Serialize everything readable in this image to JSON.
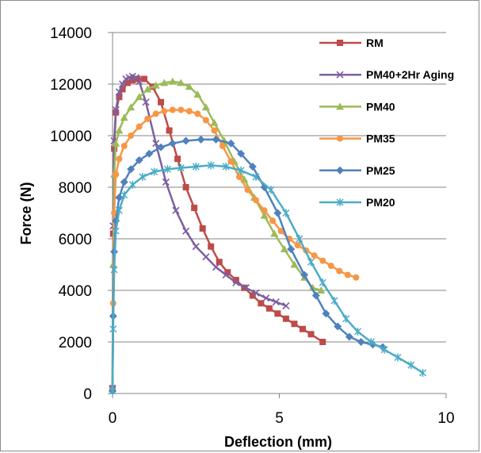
{
  "chart_data": {
    "type": "line",
    "title": "",
    "xlabel": "Deflection (mm)",
    "ylabel": "Force (N)",
    "xlim": [
      0,
      10
    ],
    "ylim": [
      0,
      14000
    ],
    "xticks": [
      0,
      5,
      10
    ],
    "yticks": [
      0,
      2000,
      4000,
      6000,
      8000,
      10000,
      12000,
      14000
    ],
    "grid": "horizontal",
    "legend_position": "right",
    "series": [
      {
        "name": "RM",
        "color": "#be4b48",
        "marker": "square",
        "x": [
          0,
          0.02,
          0.05,
          0.1,
          0.2,
          0.3,
          0.45,
          0.6,
          0.75,
          0.95,
          1.2,
          1.45,
          1.7,
          1.95,
          2.2,
          2.45,
          2.7,
          2.95,
          3.2,
          3.45,
          3.7,
          3.95,
          4.2,
          4.45,
          4.7,
          4.95,
          5.2,
          5.45,
          5.7,
          5.95,
          6.3
        ],
        "y": [
          200,
          6200,
          9500,
          10900,
          11500,
          11800,
          12050,
          12150,
          12200,
          12200,
          11900,
          11300,
          10200,
          9100,
          8000,
          7200,
          6400,
          5700,
          5100,
          4700,
          4400,
          4100,
          3800,
          3500,
          3300,
          3100,
          2900,
          2700,
          2500,
          2300,
          2000
        ]
      },
      {
        "name": "PM40+2Hr Aging",
        "color": "#7d60a0",
        "marker": "x",
        "x": [
          0,
          0.02,
          0.05,
          0.1,
          0.2,
          0.3,
          0.4,
          0.5,
          0.6,
          0.7,
          0.8,
          1.0,
          1.3,
          1.6,
          1.9,
          2.2,
          2.5,
          2.8,
          3.1,
          3.4,
          3.7,
          4.0,
          4.3,
          4.6,
          4.9,
          5.2
        ],
        "y": [
          200,
          6500,
          9800,
          11000,
          11700,
          12000,
          12200,
          12250,
          12300,
          12250,
          12100,
          11300,
          9700,
          8200,
          7100,
          6300,
          5700,
          5300,
          4900,
          4600,
          4300,
          4100,
          3900,
          3700,
          3550,
          3400
        ]
      },
      {
        "name": "PM40",
        "color": "#9bbb59",
        "marker": "triangle",
        "x": [
          0,
          0.02,
          0.05,
          0.1,
          0.2,
          0.35,
          0.55,
          0.8,
          1.05,
          1.3,
          1.55,
          1.8,
          2.05,
          2.3,
          2.55,
          2.8,
          3.05,
          3.35,
          3.65,
          3.95,
          4.25,
          4.55,
          4.85,
          5.15,
          5.45,
          5.75,
          6.0,
          6.25
        ],
        "y": [
          200,
          5000,
          8500,
          9700,
          10200,
          10700,
          11100,
          11500,
          11800,
          11950,
          12050,
          12100,
          12050,
          11900,
          11600,
          11100,
          10500,
          9800,
          9000,
          8300,
          7600,
          6900,
          6200,
          5600,
          5000,
          4500,
          4100,
          4000
        ]
      },
      {
        "name": "PM35",
        "color": "#f79646",
        "marker": "circle",
        "x": [
          0,
          0.02,
          0.05,
          0.1,
          0.2,
          0.35,
          0.55,
          0.8,
          1.05,
          1.3,
          1.55,
          1.8,
          2.05,
          2.3,
          2.55,
          2.8,
          3.05,
          3.3,
          3.55,
          3.8,
          4.05,
          4.3,
          4.55,
          4.8,
          5.05,
          5.3,
          5.55,
          5.8,
          6.05,
          6.3,
          6.55,
          6.8,
          7.05,
          7.3
        ],
        "y": [
          100,
          3500,
          7000,
          8500,
          9100,
          9600,
          10000,
          10350,
          10650,
          10850,
          10950,
          11000,
          11000,
          10950,
          10850,
          10600,
          10200,
          9600,
          9000,
          8400,
          7900,
          7500,
          7100,
          6700,
          6300,
          6000,
          5750,
          5550,
          5350,
          5150,
          4950,
          4750,
          4600,
          4500
        ]
      },
      {
        "name": "PM25",
        "color": "#4f81bd",
        "marker": "diamond",
        "x": [
          0,
          0.02,
          0.05,
          0.1,
          0.2,
          0.35,
          0.55,
          0.8,
          1.1,
          1.45,
          1.8,
          2.2,
          2.65,
          3.1,
          3.55,
          3.85,
          4.2,
          4.55,
          4.95,
          5.35,
          5.75,
          6.1,
          6.4,
          6.75,
          7.1,
          7.45,
          7.8,
          8.1
        ],
        "y": [
          100,
          3000,
          5500,
          6700,
          7600,
          8200,
          8700,
          9050,
          9300,
          9550,
          9700,
          9800,
          9850,
          9850,
          9700,
          9300,
          8800,
          8000,
          7000,
          5600,
          4600,
          3800,
          3100,
          2600,
          2200,
          2000,
          1900,
          1800
        ]
      },
      {
        "name": "PM20",
        "color": "#4bacc6",
        "marker": "star",
        "x": [
          0,
          0.02,
          0.05,
          0.1,
          0.2,
          0.35,
          0.6,
          0.9,
          1.25,
          1.65,
          2.05,
          2.5,
          2.95,
          3.4,
          3.85,
          4.3,
          4.75,
          5.2,
          5.6,
          5.95,
          6.3,
          6.65,
          7.0,
          7.35,
          7.75,
          8.15,
          8.55,
          8.95,
          9.3
        ],
        "y": [
          100,
          2500,
          4800,
          6300,
          7100,
          7700,
          8100,
          8400,
          8600,
          8700,
          8750,
          8800,
          8850,
          8800,
          8650,
          8400,
          7900,
          7000,
          6000,
          5100,
          4300,
          3600,
          2900,
          2400,
          2000,
          1700,
          1400,
          1100,
          800
        ]
      }
    ]
  }
}
